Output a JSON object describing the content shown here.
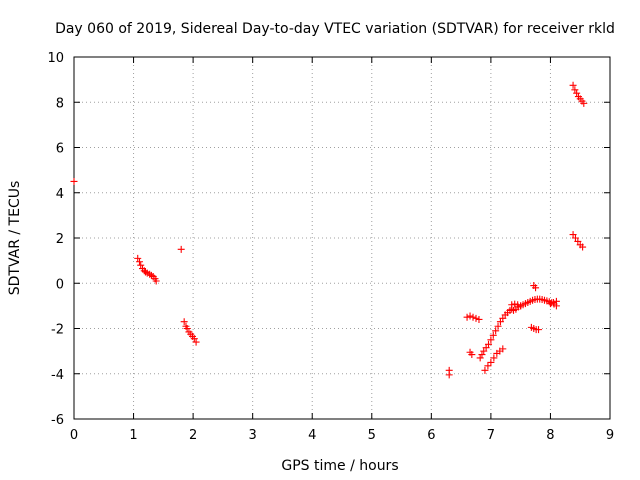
{
  "chart_data": {
    "type": "scatter",
    "title": "Day 060 of 2019, Sidereal Day-to-day VTEC variation (SDTVAR) for receiver rkld",
    "xlabel": "GPS time / hours",
    "ylabel": "SDTVAR / TECUs",
    "xlim": [
      0,
      9
    ],
    "ylim": [
      -6,
      10
    ],
    "xticks": [
      0,
      1,
      2,
      3,
      4,
      5,
      6,
      7,
      8,
      9
    ],
    "yticks": [
      -6,
      -4,
      -2,
      0,
      2,
      4,
      6,
      8,
      10
    ],
    "xtick_labels": [
      "0",
      "1",
      "2",
      "3",
      "4",
      "5",
      "6",
      "7",
      "8",
      "9"
    ],
    "ytick_labels": [
      "-6",
      "-4",
      "-2",
      "0",
      "2",
      "4",
      "6",
      "8",
      "10"
    ],
    "grid": true,
    "marker": "plus",
    "color": "#ff0000",
    "series": [
      {
        "name": "SDTVAR",
        "x": [
          0.0,
          1.07,
          1.1,
          1.12,
          1.15,
          1.18,
          1.2,
          1.23,
          1.27,
          1.3,
          1.33,
          1.36,
          1.38,
          1.8,
          1.85,
          1.88,
          1.9,
          1.93,
          1.96,
          1.99,
          2.02,
          2.05,
          6.3,
          6.3,
          6.6,
          6.65,
          6.7,
          6.75,
          6.8,
          6.65,
          6.68,
          6.82,
          6.85,
          6.88,
          6.92,
          6.96,
          7.0,
          7.04,
          7.08,
          7.12,
          7.16,
          7.2,
          7.24,
          7.28,
          7.32,
          7.35,
          7.38,
          7.42,
          7.46,
          7.5,
          7.54,
          7.58,
          7.62,
          7.66,
          7.7,
          7.74,
          7.78,
          7.82,
          7.86,
          7.9,
          7.94,
          7.98,
          8.02,
          8.06,
          8.1,
          6.9,
          6.95,
          7.0,
          7.05,
          7.1,
          7.15,
          7.2,
          7.35,
          7.4,
          7.45,
          7.5,
          7.68,
          7.72,
          7.76,
          7.8,
          7.72,
          7.75,
          8.0,
          8.05,
          8.1,
          8.38,
          8.41,
          8.44,
          8.47,
          8.5,
          8.53,
          8.56,
          8.38,
          8.42,
          8.46,
          8.5,
          8.54
        ],
        "y": [
          4.5,
          1.1,
          0.95,
          0.8,
          0.65,
          0.55,
          0.5,
          0.45,
          0.4,
          0.35,
          0.3,
          0.2,
          0.1,
          1.5,
          -1.7,
          -1.9,
          -2.0,
          -2.15,
          -2.25,
          -2.35,
          -2.45,
          -2.6,
          -3.85,
          -4.05,
          -1.5,
          -1.45,
          -1.5,
          -1.55,
          -1.6,
          -3.05,
          -3.15,
          -3.3,
          -3.15,
          -3.0,
          -2.85,
          -2.7,
          -2.5,
          -2.3,
          -2.1,
          -1.9,
          -1.7,
          -1.55,
          -1.4,
          -1.3,
          -1.2,
          -1.15,
          -1.2,
          -1.15,
          -1.05,
          -1.0,
          -0.95,
          -0.9,
          -0.85,
          -0.8,
          -0.75,
          -0.72,
          -0.7,
          -0.7,
          -0.72,
          -0.75,
          -0.78,
          -0.82,
          -0.86,
          -0.92,
          -1.0,
          -3.85,
          -3.65,
          -3.5,
          -3.3,
          -3.1,
          -3.0,
          -2.9,
          -0.95,
          -0.92,
          -0.95,
          -1.0,
          -1.95,
          -2.0,
          -2.05,
          -2.05,
          -0.1,
          -0.2,
          -0.9,
          -0.85,
          -0.8,
          8.75,
          8.55,
          8.4,
          8.25,
          8.15,
          8.05,
          7.95,
          2.15,
          2.0,
          1.85,
          1.7,
          1.6
        ]
      }
    ]
  }
}
